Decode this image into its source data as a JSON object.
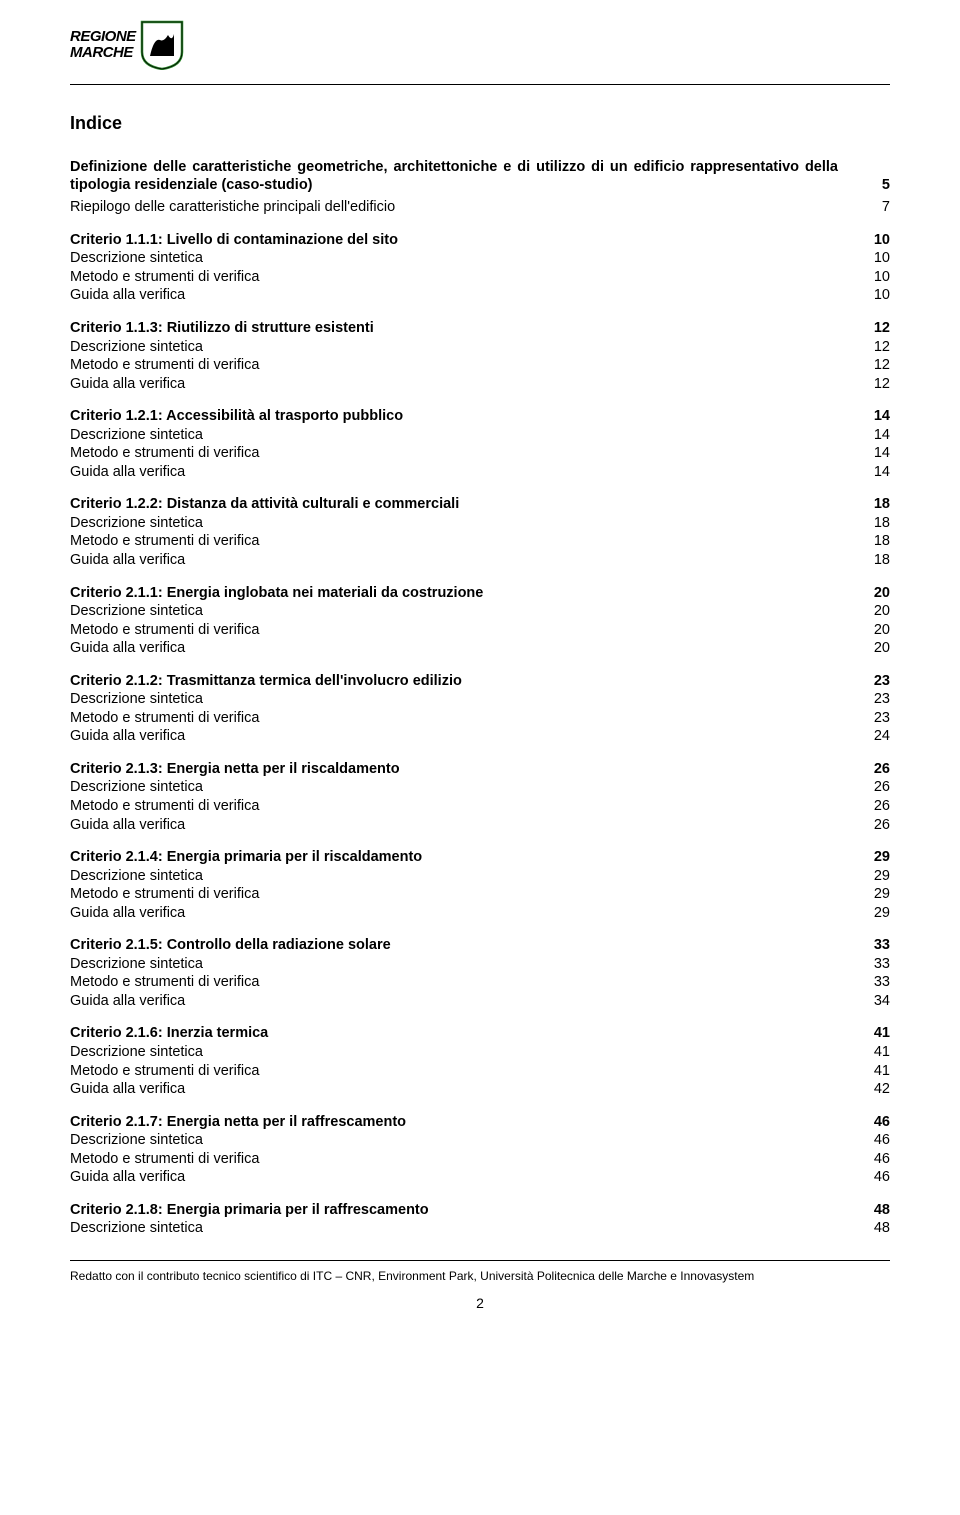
{
  "logo": {
    "line1": "REGIONE",
    "line2": "MARCHE"
  },
  "heading": "Indice",
  "intro": [
    {
      "label": "Definizione delle caratteristiche geometriche, architettoniche e di utilizzo di un edificio rappresentativo della tipologia residenziale (caso-studio)",
      "page": "5"
    },
    {
      "label": "Riepilogo delle caratteristiche principali dell'edificio",
      "page": "7"
    }
  ],
  "sub_labels": {
    "desc": "Descrizione sintetica",
    "method": "Metodo e strumenti di verifica",
    "guide": "Guida alla verifica"
  },
  "sections": [
    {
      "title": "Criterio 1.1.1: Livello di contaminazione del sito",
      "tp": "10",
      "dp": "10",
      "mp": "10",
      "gp": "10"
    },
    {
      "title": "Criterio 1.1.3: Riutilizzo di strutture esistenti",
      "tp": "12",
      "dp": "12",
      "mp": "12",
      "gp": "12"
    },
    {
      "title": "Criterio 1.2.1: Accessibilità al trasporto pubblico",
      "tp": "14",
      "dp": "14",
      "mp": "14",
      "gp": "14"
    },
    {
      "title": "Criterio 1.2.2: Distanza da attività culturali e commerciali",
      "tp": "18",
      "dp": "18",
      "mp": "18",
      "gp": "18"
    },
    {
      "title": "Criterio 2.1.1: Energia inglobata nei materiali da costruzione",
      "tp": "20",
      "dp": "20",
      "mp": "20",
      "gp": "20"
    },
    {
      "title": "Criterio 2.1.2: Trasmittanza termica dell'involucro edilizio",
      "tp": "23",
      "dp": "23",
      "mp": "23",
      "gp": "24"
    },
    {
      "title": "Criterio 2.1.3: Energia netta per il riscaldamento",
      "tp": "26",
      "dp": "26",
      "mp": "26",
      "gp": "26"
    },
    {
      "title": "Criterio 2.1.4: Energia primaria per il riscaldamento",
      "tp": "29",
      "dp": "29",
      "mp": "29",
      "gp": "29"
    },
    {
      "title": "Criterio 2.1.5: Controllo della radiazione solare",
      "tp": "33",
      "dp": "33",
      "mp": "33",
      "gp": "34"
    },
    {
      "title": "Criterio 2.1.6: Inerzia termica",
      "tp": "41",
      "dp": "41",
      "mp": "41",
      "gp": "42"
    },
    {
      "title": "Criterio 2.1.7: Energia netta per il raffrescamento",
      "tp": "46",
      "dp": "46",
      "mp": "46",
      "gp": "46"
    }
  ],
  "partial_section": {
    "title": "Criterio 2.1.8: Energia primaria per il raffrescamento",
    "tp": "48",
    "dp": "48"
  },
  "footer": "Redatto con il contributo tecnico scientifico di ITC – CNR, Environment Park, Università Politecnica delle Marche e Innovasystem",
  "page_number": "2"
}
